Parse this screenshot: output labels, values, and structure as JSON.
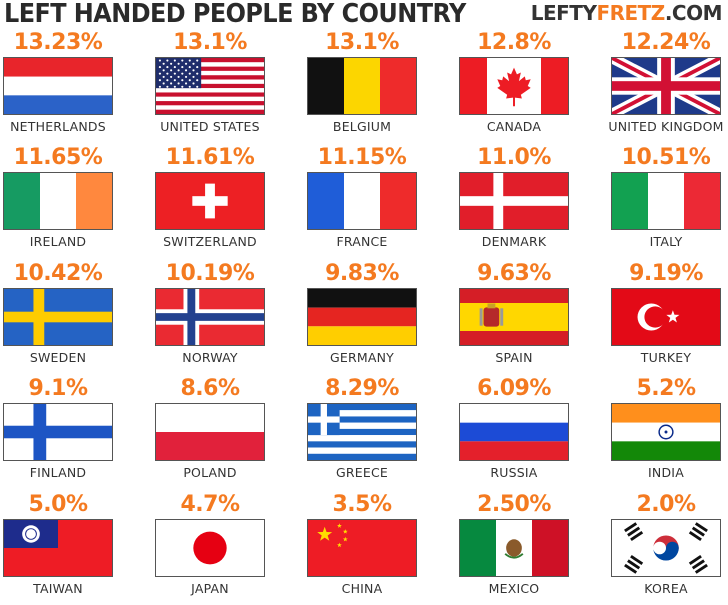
{
  "header": {
    "title": "LEFT HANDED PEOPLE BY COUNTRY",
    "logo_part1": "LEFTY",
    "logo_part2": "FRETZ",
    "logo_part3": ".COM"
  },
  "colors": {
    "accent": "#f47a20",
    "text": "#333333"
  },
  "chart_data": {
    "type": "table",
    "title": "LEFT HANDED PEOPLE BY COUNTRY",
    "columns": [
      "country",
      "percentage"
    ],
    "rows": [
      {
        "country": "NETHERLANDS",
        "value": 13.23,
        "label": "13.23%",
        "flag": "netherlands-flag"
      },
      {
        "country": "UNITED STATES",
        "value": 13.1,
        "label": "13.1%",
        "flag": "united-states-flag"
      },
      {
        "country": "BELGIUM",
        "value": 13.1,
        "label": "13.1%",
        "flag": "belgium-flag"
      },
      {
        "country": "CANADA",
        "value": 12.8,
        "label": "12.8%",
        "flag": "canada-flag"
      },
      {
        "country": "UNITED KINGDOM",
        "value": 12.24,
        "label": "12.24%",
        "flag": "united-kingdom-flag"
      },
      {
        "country": "IRELAND",
        "value": 11.65,
        "label": "11.65%",
        "flag": "ireland-flag"
      },
      {
        "country": "SWITZERLAND",
        "value": 11.61,
        "label": "11.61%",
        "flag": "switzerland-flag"
      },
      {
        "country": "FRANCE",
        "value": 11.15,
        "label": "11.15%",
        "flag": "france-flag"
      },
      {
        "country": "DENMARK",
        "value": 11.0,
        "label": "11.0%",
        "flag": "denmark-flag"
      },
      {
        "country": "ITALY",
        "value": 10.51,
        "label": "10.51%",
        "flag": "italy-flag"
      },
      {
        "country": "SWEDEN",
        "value": 10.42,
        "label": "10.42%",
        "flag": "sweden-flag"
      },
      {
        "country": "NORWAY",
        "value": 10.19,
        "label": "10.19%",
        "flag": "norway-flag"
      },
      {
        "country": "GERMANY",
        "value": 9.83,
        "label": "9.83%",
        "flag": "germany-flag"
      },
      {
        "country": "SPAIN",
        "value": 9.63,
        "label": "9.63%",
        "flag": "spain-flag"
      },
      {
        "country": "TURKEY",
        "value": 9.19,
        "label": "9.19%",
        "flag": "turkey-flag"
      },
      {
        "country": "FINLAND",
        "value": 9.1,
        "label": "9.1%",
        "flag": "finland-flag"
      },
      {
        "country": "POLAND",
        "value": 8.6,
        "label": "8.6%",
        "flag": "poland-flag"
      },
      {
        "country": "GREECE",
        "value": 8.29,
        "label": "8.29%",
        "flag": "greece-flag"
      },
      {
        "country": "RUSSIA",
        "value": 6.09,
        "label": "6.09%",
        "flag": "russia-flag"
      },
      {
        "country": "INDIA",
        "value": 5.2,
        "label": "5.2%",
        "flag": "india-flag"
      },
      {
        "country": "TAIWAN",
        "value": 5.0,
        "label": "5.0%",
        "flag": "taiwan-flag"
      },
      {
        "country": "JAPAN",
        "value": 4.7,
        "label": "4.7%",
        "flag": "japan-flag"
      },
      {
        "country": "CHINA",
        "value": 3.5,
        "label": "3.5%",
        "flag": "china-flag"
      },
      {
        "country": "MEXICO",
        "value": 2.5,
        "label": "2.50%",
        "flag": "mexico-flag"
      },
      {
        "country": "KOREA",
        "value": 2.0,
        "label": "2.0%",
        "flag": "korea-flag"
      }
    ]
  }
}
